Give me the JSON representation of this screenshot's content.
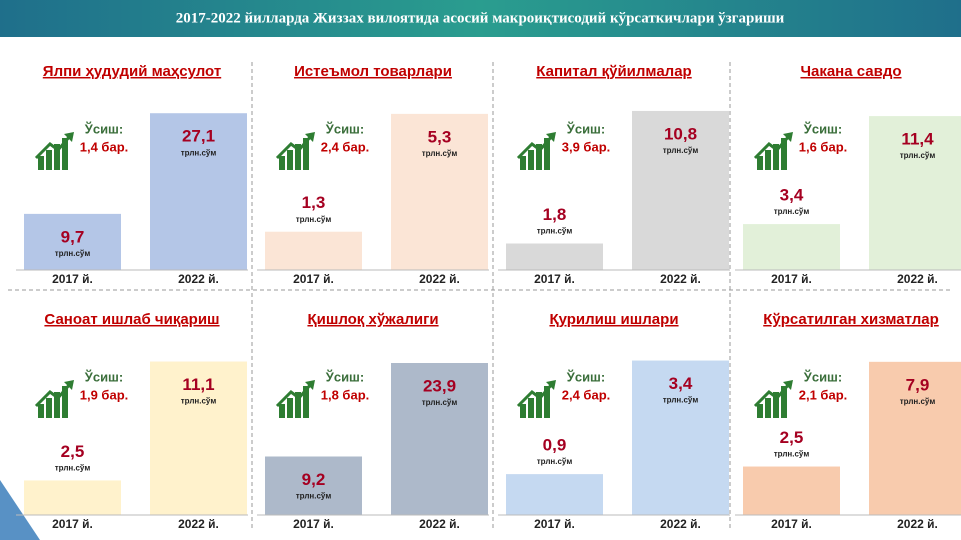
{
  "title": "2017-2022 йилларда Жиззах вилоятида асосий макроиқтисодий кўрсаткичлари ўзгариши",
  "chart_data": [
    {
      "type": "bar",
      "title": "Ялпи ҳудудий маҳсулот",
      "categories": [
        "2017 й.",
        "2022 й."
      ],
      "values": [
        9.7,
        27.1
      ],
      "value_labels": [
        "9,7",
        "27,1"
      ],
      "unit": "трлн.сўм",
      "growth_label": "Ўсиш:",
      "growth_value": "1,4 бар.",
      "colors": [
        "#b4c6e7",
        "#b4c6e7"
      ],
      "ylim": [
        0,
        28
      ]
    },
    {
      "type": "bar",
      "title": "Истеъмол товарлари",
      "categories": [
        "2017 й.",
        "2022 й."
      ],
      "values": [
        1.3,
        5.3
      ],
      "value_labels": [
        "1,3",
        "5,3"
      ],
      "unit": "трлн.сўм",
      "growth_label": "Ўсиш:",
      "growth_value": "2,4 бар.",
      "colors": [
        "#fbe5d6",
        "#fbe5d6"
      ],
      "ylim": [
        0,
        5.5
      ]
    },
    {
      "type": "bar",
      "title": "Капитал қўйилмалар",
      "categories": [
        "2017 й.",
        "2022 й."
      ],
      "values": [
        1.8,
        10.8
      ],
      "value_labels": [
        "1,8",
        "10,8"
      ],
      "unit": "трлн.сўм",
      "growth_label": "Ўсиш:",
      "growth_value": "3,9 бар.",
      "colors": [
        "#d9d9d9",
        "#d9d9d9"
      ],
      "ylim": [
        0,
        11
      ]
    },
    {
      "type": "bar",
      "title": "Чакана савдо",
      "categories": [
        "2017 й.",
        "2022 й."
      ],
      "values": [
        3.4,
        11.4
      ],
      "value_labels": [
        "3,4",
        "11,4"
      ],
      "unit": "трлн.сўм",
      "growth_label": "Ўсиш:",
      "growth_value": "1,6 бар.",
      "colors": [
        "#e2f0d9",
        "#e2f0d9"
      ],
      "ylim": [
        0,
        12
      ]
    },
    {
      "type": "bar",
      "title": "Саноат ишлаб чиқариш",
      "categories": [
        "2017 й.",
        "2022 й."
      ],
      "values": [
        2.5,
        11.1
      ],
      "value_labels": [
        "2,5",
        "11,1"
      ],
      "unit": "трлн.сўм",
      "growth_label": "Ўсиш:",
      "growth_value": "1,9 бар.",
      "colors": [
        "#fff2cc",
        "#fff2cc"
      ],
      "ylim": [
        0,
        11.5
      ]
    },
    {
      "type": "bar",
      "title": "Қишлоқ хўжалиги",
      "categories": [
        "2017 й.",
        "2022 й."
      ],
      "values": [
        9.2,
        23.9
      ],
      "value_labels": [
        "9,2",
        "23,9"
      ],
      "unit": "трлн.сўм",
      "growth_label": "Ўсиш:",
      "growth_value": "1,8 бар.",
      "colors": [
        "#adb9ca",
        "#adb9ca"
      ],
      "ylim": [
        0,
        25
      ]
    },
    {
      "type": "bar",
      "title": "Қурилиш ишлари",
      "categories": [
        "2017 й.",
        "2022 й."
      ],
      "values": [
        0.9,
        3.4
      ],
      "value_labels": [
        "0,9",
        "3,4"
      ],
      "unit": "трлн.сўм",
      "growth_label": "Ўсиш:",
      "growth_value": "2,4 бар.",
      "colors": [
        "#c5d9f1",
        "#c5d9f1"
      ],
      "ylim": [
        0,
        3.5
      ]
    },
    {
      "type": "bar",
      "title": "Кўрсатилган хизматлар",
      "categories": [
        "2017 й.",
        "2022 й."
      ],
      "values": [
        2.5,
        7.9
      ],
      "value_labels": [
        "2,5",
        "7,9"
      ],
      "unit": "трлн.сўм",
      "growth_label": "Ўсиш:",
      "growth_value": "2,1 бар.",
      "colors": [
        "#f8cbad",
        "#f8cbad"
      ],
      "ylim": [
        0,
        8.2
      ]
    }
  ]
}
